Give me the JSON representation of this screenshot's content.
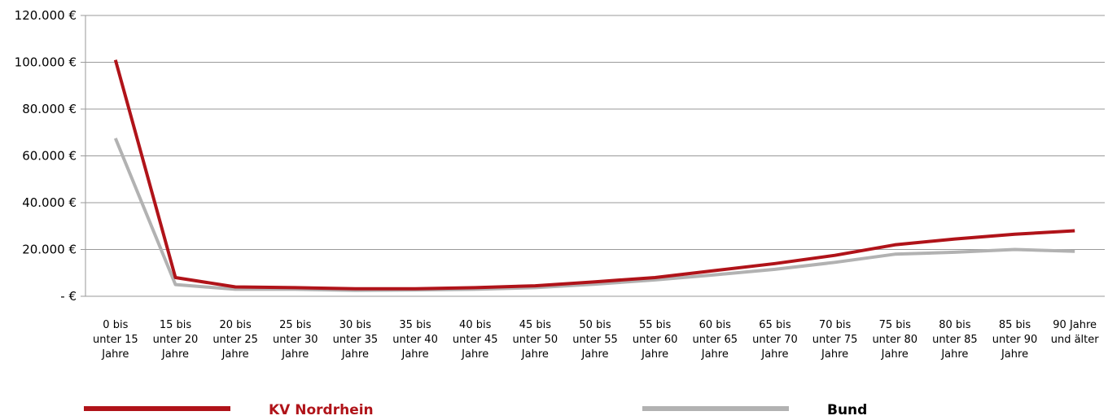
{
  "chart_data": {
    "type": "line",
    "categories": [
      "0 bis unter 15 Jahre",
      "15 bis unter 20 Jahre",
      "20 bis unter 25 Jahre",
      "25 bis unter 30 Jahre",
      "30 bis unter 35 Jahre",
      "35 bis unter 40 Jahre",
      "40 bis unter 45 Jahre",
      "45 bis unter 50 Jahre",
      "50 bis unter 55 Jahre",
      "55 bis unter 60 Jahre",
      "60 bis unter 65 Jahre",
      "65 bis unter 70 Jahre",
      "70 bis unter 75 Jahre",
      "75 bis unter 80 Jahre",
      "80 bis unter 85 Jahre",
      "85 bis unter 90 Jahre",
      "90 Jahre und älter"
    ],
    "category_lines": [
      [
        "0 bis",
        "unter 15",
        "Jahre"
      ],
      [
        "15 bis",
        "unter 20",
        "Jahre"
      ],
      [
        "20 bis",
        "unter 25",
        "Jahre"
      ],
      [
        "25 bis",
        "unter 30",
        "Jahre"
      ],
      [
        "30 bis",
        "unter 35",
        "Jahre"
      ],
      [
        "35 bis",
        "unter 40",
        "Jahre"
      ],
      [
        "40 bis",
        "unter 45",
        "Jahre"
      ],
      [
        "45 bis",
        "unter 50",
        "Jahre"
      ],
      [
        "50 bis",
        "unter 55",
        "Jahre"
      ],
      [
        "55 bis",
        "unter 60",
        "Jahre"
      ],
      [
        "60 bis",
        "unter 65",
        "Jahre"
      ],
      [
        "65 bis",
        "unter 70",
        "Jahre"
      ],
      [
        "70 bis",
        "unter 75",
        "Jahre"
      ],
      [
        "75 bis",
        "unter 80",
        "Jahre"
      ],
      [
        "80 bis",
        "unter 85",
        "Jahre"
      ],
      [
        "85 bis",
        "unter 90",
        "Jahre"
      ],
      [
        "90 Jahre",
        "und älter"
      ]
    ],
    "series": [
      {
        "name": "KV Nordrhein",
        "color": "#b01319",
        "values": [
          101000,
          8000,
          4000,
          3700,
          3200,
          3200,
          3700,
          4500,
          6200,
          8000,
          11000,
          14000,
          17500,
          22000,
          24500,
          26500,
          28000
        ]
      },
      {
        "name": "Bund",
        "color": "#b2b2b2",
        "values": [
          67500,
          5000,
          3000,
          3000,
          2500,
          2700,
          3000,
          3700,
          5200,
          7000,
          9200,
          11500,
          14500,
          18000,
          18800,
          20000,
          19200
        ]
      }
    ],
    "y_ticks": [
      0,
      20000,
      40000,
      60000,
      80000,
      100000,
      120000
    ],
    "y_tick_labels": [
      "- €",
      "20.000 €",
      "40.000 €",
      "60.000 €",
      "80.000 €",
      "100.000 €",
      "120.000 €"
    ],
    "ylim": [
      0,
      120000
    ],
    "grid": true,
    "legend_position": "bottom",
    "title": "",
    "xlabel": "",
    "ylabel": ""
  }
}
